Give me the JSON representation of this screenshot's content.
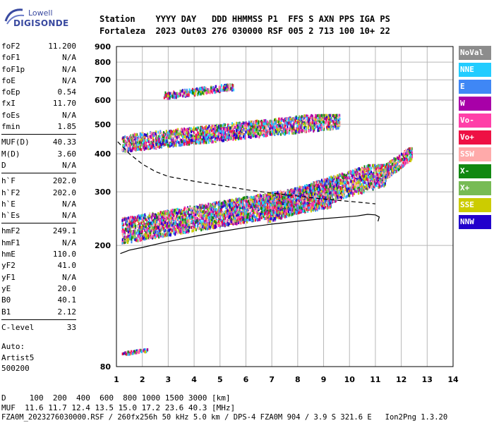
{
  "logo": {
    "brand": "Lowell",
    "product": "DIGISONDE"
  },
  "header": {
    "line1": "Station    YYYY DAY   DDD HHMMSS P1  FFS S AXN PPS IGA PS",
    "line2": "Fortaleza  2023 Out03 276 030000 RSF 005 2 713 100 10+ 22"
  },
  "params": [
    [
      [
        "foF2",
        "11.200"
      ],
      [
        "foF1",
        "N/A"
      ],
      [
        "foF1p",
        "N/A"
      ],
      [
        "foE",
        "N/A"
      ],
      [
        "foEp",
        "0.54"
      ],
      [
        "fxI",
        "11.70"
      ],
      [
        "foEs",
        "N/A"
      ],
      [
        "fmin",
        "1.85"
      ]
    ],
    [
      [
        "MUF(D)",
        "40.33"
      ],
      [
        "M(D)",
        "3.60"
      ],
      [
        "D",
        "N/A"
      ]
    ],
    [
      [
        "h`F",
        "202.0"
      ],
      [
        "h`F2",
        "202.0"
      ],
      [
        "h`E",
        "N/A"
      ],
      [
        "h`Es",
        "N/A"
      ]
    ],
    [
      [
        "hmF2",
        "249.1"
      ],
      [
        "hmF1",
        "N/A"
      ],
      [
        "hmE",
        "110.0"
      ],
      [
        "yF2",
        "41.0"
      ],
      [
        "yF1",
        "N/A"
      ],
      [
        "yE",
        "20.0"
      ],
      [
        "B0",
        "40.1"
      ],
      [
        "B1",
        "2.12"
      ]
    ],
    [
      [
        "C-level",
        "33"
      ]
    ]
  ],
  "auto": {
    "label": "Auto:",
    "name": "Artist5",
    "version": "500200"
  },
  "legend": [
    {
      "label": "NoVal",
      "color": "#8c8c8c"
    },
    {
      "label": "NNE",
      "color": "#22ccff"
    },
    {
      "label": "E",
      "color": "#3f87f5"
    },
    {
      "label": "W",
      "color": "#a800a8"
    },
    {
      "label": "Vo-",
      "color": "#ff3fa8"
    },
    {
      "label": "Vo+",
      "color": "#ee1144"
    },
    {
      "label": "SSW",
      "color": "#ffaaaa"
    },
    {
      "label": "X-",
      "color": "#118811"
    },
    {
      "label": "X+",
      "color": "#77bb55"
    },
    {
      "label": "SSE",
      "color": "#cccc00"
    },
    {
      "label": "NNW",
      "color": "#2200cc"
    }
  ],
  "footer": {
    "line1": "D     100  200  400  600  800 1000 1500 3000 [km]",
    "line2": "MUF  11.6 11.7 12.4 13.5 15.0 17.2 23.6 40.3 [MHz]",
    "line3": "FZA0M_2023276030000.RSF / 260fx256h 50 kHz 5.0 km / DPS-4 FZA0M 904 / 3.9 S 321.6 E   Ion2Png 1.3.20"
  },
  "chart_data": {
    "type": "scatter",
    "xlim": [
      1,
      14
    ],
    "ylim": [
      80,
      900
    ],
    "y_scale": "log",
    "x_ticks": [
      1,
      2,
      3,
      4,
      5,
      6,
      7,
      8,
      9,
      10,
      11,
      12,
      13,
      14
    ],
    "y_ticks": [
      80,
      200,
      300,
      400,
      500,
      600,
      700,
      800,
      900
    ],
    "grid": true,
    "traces": [
      {
        "style": "solid",
        "x": [
          1.15,
          1.5,
          2.0,
          3.0,
          4.0,
          5.0,
          6.0,
          7.0,
          8.0,
          9.0,
          9.8,
          10.3,
          10.7,
          11.0,
          11.15,
          11.1
        ],
        "y": [
          188,
          193,
          197,
          206,
          214,
          222,
          229,
          235,
          240,
          245,
          248,
          250,
          253,
          252,
          248,
          240
        ]
      },
      {
        "style": "dashed",
        "x": [
          1.05,
          1.5,
          2.0,
          2.5,
          3.0,
          4.0,
          5.0,
          6.0,
          7.0,
          7.8,
          8.5,
          9.2,
          9.8,
          10.4,
          11.0
        ],
        "y": [
          438,
          400,
          370,
          350,
          337,
          325,
          315,
          305,
          297,
          292,
          287,
          283,
          280,
          277,
          274
        ]
      }
    ],
    "echo_clusters": [
      {
        "x": [
          1.2,
          9.3
        ],
        "y": [
          205,
          312
        ],
        "color": "mixed"
      },
      {
        "x": [
          6.8,
          11.4
        ],
        "y": [
          240,
          370
        ],
        "color": "mixed"
      },
      {
        "x": [
          11.3,
          12.4
        ],
        "y": [
          330,
          420
        ],
        "color": "mixed"
      },
      {
        "x": [
          1.2,
          9.6
        ],
        "y": [
          410,
          540
        ],
        "color": "mixed"
      },
      {
        "x": [
          2.8,
          5.5
        ],
        "y": [
          610,
          680
        ],
        "color": "mixed"
      },
      {
        "x": [
          1.2,
          2.2
        ],
        "y": [
          88,
          92
        ],
        "color": "mixed"
      }
    ]
  }
}
